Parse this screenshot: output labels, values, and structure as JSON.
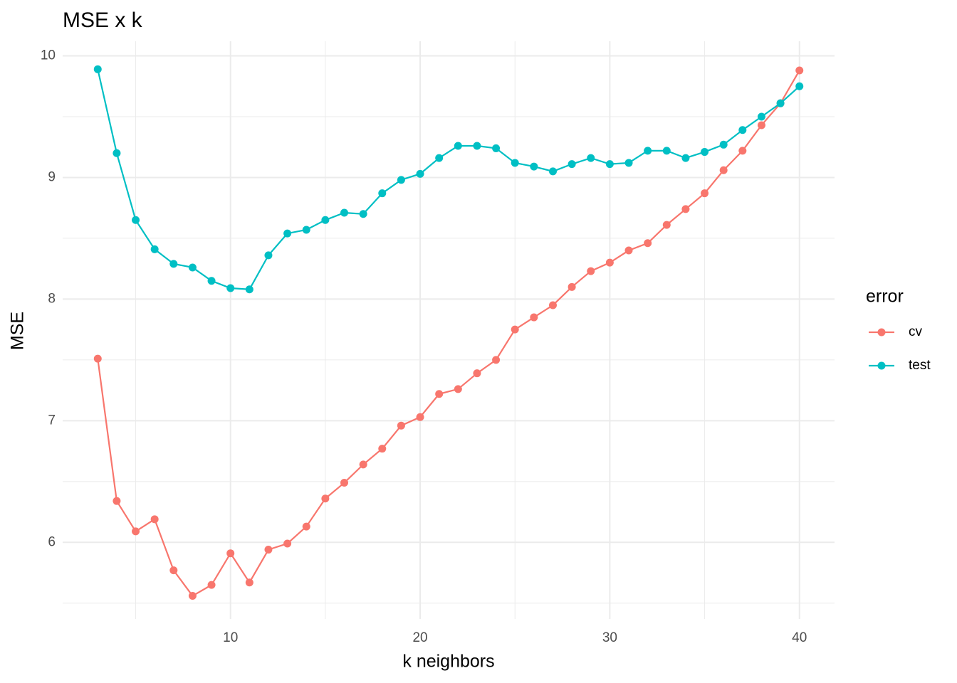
{
  "chart_data": {
    "type": "line",
    "title": "MSE x k",
    "x_label": "k neighbors",
    "y_label": "MSE",
    "x": [
      3,
      4,
      5,
      6,
      7,
      8,
      9,
      10,
      11,
      12,
      13,
      14,
      15,
      16,
      17,
      18,
      19,
      20,
      21,
      22,
      23,
      24,
      25,
      26,
      27,
      28,
      29,
      30,
      31,
      32,
      33,
      34,
      35,
      36,
      37,
      38,
      39,
      40
    ],
    "series": [
      {
        "name": "cv",
        "color": "#F8766D",
        "values": [
          7.51,
          6.34,
          6.09,
          6.19,
          5.77,
          5.56,
          5.65,
          5.91,
          5.67,
          5.94,
          5.99,
          6.13,
          6.36,
          6.49,
          6.64,
          6.77,
          6.96,
          7.03,
          7.22,
          7.26,
          7.39,
          7.5,
          7.75,
          7.85,
          7.95,
          8.1,
          8.23,
          8.3,
          8.4,
          8.46,
          8.61,
          8.74,
          8.87,
          9.06,
          9.22,
          9.43,
          9.61,
          9.88
        ]
      },
      {
        "name": "test",
        "color": "#00BFC4",
        "values": [
          9.89,
          9.2,
          8.65,
          8.41,
          8.29,
          8.26,
          8.15,
          8.09,
          8.08,
          8.36,
          8.54,
          8.57,
          8.65,
          8.71,
          8.7,
          8.87,
          8.98,
          9.03,
          9.16,
          9.26,
          9.26,
          9.24,
          9.12,
          9.09,
          9.05,
          9.11,
          9.16,
          9.11,
          9.12,
          9.22,
          9.22,
          9.16,
          9.21,
          9.27,
          9.39,
          9.5,
          9.61,
          9.75
        ]
      }
    ],
    "legend_title": "error",
    "legend_position": "right",
    "xlim": [
      1.15,
      41.85
    ],
    "xticks": [
      10,
      20,
      30,
      40
    ],
    "x_minor_grid": [
      5,
      15,
      25,
      35
    ],
    "ylim": [
      5.37,
      10.12
    ],
    "yticks": [
      6,
      7,
      8,
      9,
      10
    ],
    "y_minor_grid": [
      5.5,
      6.5,
      7.5,
      8.5,
      9.5
    ],
    "grid": true
  }
}
